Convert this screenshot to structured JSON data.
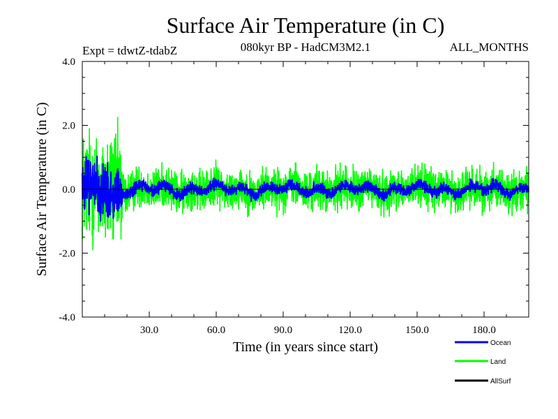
{
  "chart_data": {
    "type": "line",
    "title": "Surface Air Temperature (in C)",
    "subtitle_left": "Expt = tdwtZ-tdabZ",
    "subtitle_center": "080kyr BP - HadCM3M2.1",
    "subtitle_right": "ALL_MONTHS",
    "xlabel": "Time (in years since start)",
    "ylabel": "Surface Air Temperature (in C)",
    "xlim": [
      0,
      200
    ],
    "ylim": [
      -4.0,
      4.0
    ],
    "x_ticks": [
      30,
      60,
      90,
      120,
      150,
      180
    ],
    "x_tick_labels": [
      "30.0",
      "60.0",
      "90.0",
      "120.0",
      "150.0",
      "180.0"
    ],
    "y_ticks": [
      -4,
      -2,
      0,
      2,
      4
    ],
    "y_tick_labels": [
      "-4.0",
      "-2.0",
      "0.0",
      "2.0",
      "4.0"
    ],
    "zero_line": 0,
    "series": [
      {
        "name": "Ocean",
        "color": "#0000ff",
        "time_step": 0.083,
        "description": "monthly anomaly; amplitude ~1.5 during years 0-18, ~0.35 afterwards",
        "spinup_end": 18,
        "amplitude_spinup": 1.5,
        "amplitude_rest": 0.35
      },
      {
        "name": "Land",
        "color": "#00ff00",
        "time_step": 0.083,
        "description": "monthly anomaly; amplitude ~3.3 during years 0-18, ~1.2 afterwards",
        "spinup_end": 18,
        "amplitude_spinup": 3.3,
        "amplitude_rest": 1.2
      },
      {
        "name": "AllSurf",
        "color": "#000000",
        "values": []
      }
    ],
    "legend": {
      "position": "bottom-right",
      "entries": [
        "Ocean",
        "Land",
        "AllSurf"
      ]
    }
  }
}
